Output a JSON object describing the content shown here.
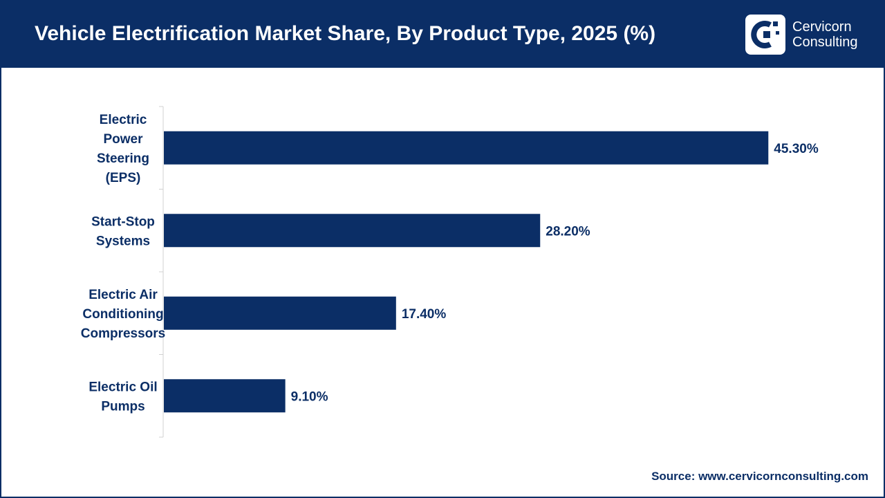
{
  "header": {
    "title": "Vehicle Electrification Market Share, By Product Type, 2025 (%)",
    "logo_line1": "Cervicorn",
    "logo_line2": "Consulting"
  },
  "colors": {
    "header_bg": "#0b2e66",
    "bar": "#0b2e66",
    "text": "#0b2e66"
  },
  "chart_data": {
    "type": "bar",
    "orientation": "horizontal",
    "title": "",
    "xlabel": "",
    "ylabel": "",
    "categories": [
      [
        "Electric",
        "Power",
        "Steering",
        "(EPS)"
      ],
      [
        "Start-Stop",
        "Systems"
      ],
      [
        "Electric Air",
        "Conditioning",
        "Compressors"
      ],
      [
        "Electric Oil",
        "Pumps"
      ]
    ],
    "values": [
      45.3,
      28.2,
      17.4,
      9.1
    ],
    "data_labels": [
      "45.30%",
      "28.20%",
      "17.40%",
      "9.10%"
    ],
    "xlim": [
      0,
      50
    ],
    "grid": false,
    "legend": "none"
  },
  "footer": {
    "source": "Source: www.cervicornconsulting.com"
  }
}
